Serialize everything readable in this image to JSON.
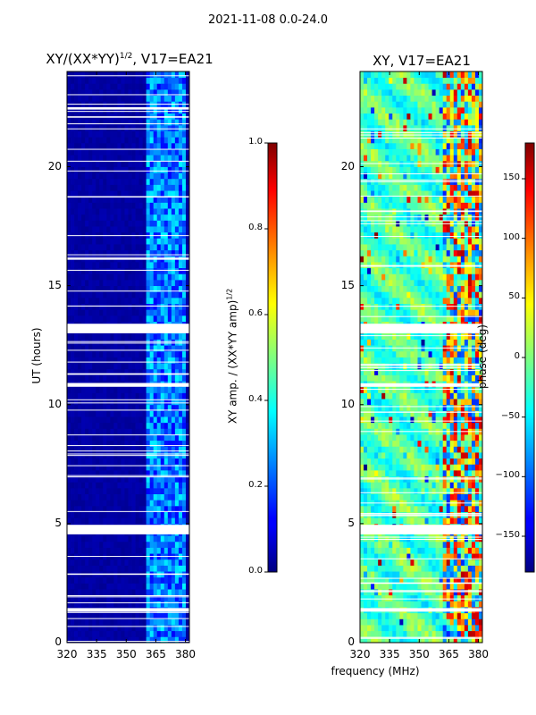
{
  "figure": {
    "suptitle": "2021-11-08 0.0-24.0",
    "xlabel": "frequency (MHz)"
  },
  "chart_data": [
    {
      "type": "heatmap",
      "title_main": "XY/(XX*YY)",
      "title_sup": "1/2",
      "title_suffix": ", V17=EA21",
      "xlabel": "",
      "ylabel": "UT (hours)",
      "xlim": [
        320,
        382
      ],
      "ylim": [
        0,
        24
      ],
      "xticks": [
        320,
        335,
        350,
        365,
        380
      ],
      "yticks": [
        0,
        5,
        10,
        15,
        20
      ],
      "colormap": "jet",
      "colorbar": {
        "label_main": "XY amp. / (XX*YY amp)",
        "label_sup": "1/2",
        "range": [
          0.0,
          1.0
        ],
        "ticks": [
          "0.0",
          "0.2",
          "0.4",
          "0.6",
          "0.8",
          "1.0"
        ]
      },
      "bright_band_MHz": [
        360,
        380
      ],
      "flagged_bands_UT": [
        [
          1.3,
          1.45
        ],
        [
          4.55,
          4.95
        ],
        [
          13.0,
          13.4
        ],
        [
          10.75,
          10.9
        ],
        [
          22.4,
          22.5
        ]
      ]
    },
    {
      "type": "heatmap",
      "title": "XY, V17=EA21",
      "xlabel": "",
      "ylabel": "",
      "xlim": [
        320,
        382
      ],
      "ylim": [
        0,
        24
      ],
      "xticks": [
        320,
        335,
        350,
        365,
        380
      ],
      "yticks": [
        0,
        5,
        10,
        15,
        20
      ],
      "colormap": "jet",
      "colorbar": {
        "label": "phase (deg)",
        "range": [
          -180,
          180
        ],
        "ticks": [
          "150",
          "100",
          "50",
          "0",
          "−50",
          "−100",
          "−150"
        ]
      },
      "flagged_bands_UT": [
        [
          1.3,
          1.45
        ],
        [
          4.55,
          4.95
        ],
        [
          13.0,
          13.4
        ],
        [
          10.75,
          10.9
        ]
      ]
    }
  ],
  "colors": {
    "jet_low": "#00007f",
    "jet_mid": "#7fff7f",
    "jet_high": "#7f0000",
    "flag": "#ffffff"
  }
}
